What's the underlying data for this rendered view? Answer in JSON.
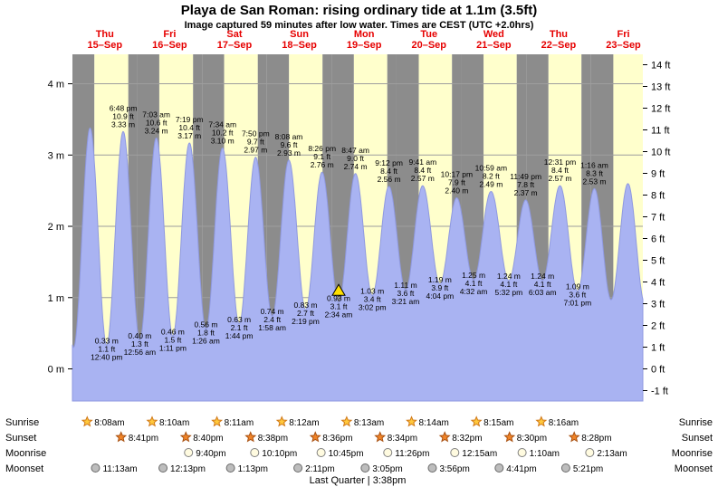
{
  "header": {
    "title": "Playa de San Roman: rising ordinary tide at 1.1m (3.5ft)",
    "subtitle": "Image captured 59 minutes after low water. Times are CEST (UTC +2.0hrs)"
  },
  "chart_data": {
    "type": "area",
    "title": "Playa de San Roman: rising ordinary tide at 1.1m (3.5ft)",
    "x_range_days": [
      0,
      8.8
    ],
    "grid": true,
    "day_band_color": "#ffffcc",
    "night_band_color": "#8c8c8c",
    "tide_fill_color": "#a9b3f2",
    "tide_edge_color": "#8f99e0",
    "day_label_color": "#e60000",
    "current_marker_color": "#ffdf00",
    "y_left_ticks": [
      {
        "value": 4,
        "label": "4 m"
      },
      {
        "value": 3,
        "label": "3 m"
      },
      {
        "value": 2,
        "label": "2 m"
      },
      {
        "value": 1,
        "label": "1 m"
      },
      {
        "value": 0,
        "label": "0 m"
      }
    ],
    "y_right_ticks": [
      {
        "value": 14,
        "label": "14 ft"
      },
      {
        "value": 13,
        "label": "13 ft"
      },
      {
        "value": 12,
        "label": "12 ft"
      },
      {
        "value": 11,
        "label": "11 ft"
      },
      {
        "value": 10,
        "label": "10 ft"
      },
      {
        "value": 9,
        "label": "9 ft"
      },
      {
        "value": 8,
        "label": "8 ft"
      },
      {
        "value": 7,
        "label": "7 ft"
      },
      {
        "value": 6,
        "label": "6 ft"
      },
      {
        "value": 5,
        "label": "5 ft"
      },
      {
        "value": 4,
        "label": "4 ft"
      },
      {
        "value": 3,
        "label": "3 ft"
      },
      {
        "value": 2,
        "label": "2 ft"
      },
      {
        "value": 1,
        "label": "1 ft"
      },
      {
        "value": 0,
        "label": "0 ft"
      },
      {
        "value": -1,
        "label": "-1 ft"
      }
    ],
    "days": [
      {
        "weekday": "Thu",
        "date": "15–Sep"
      },
      {
        "weekday": "Fri",
        "date": "16–Sep"
      },
      {
        "weekday": "Sat",
        "date": "17–Sep"
      },
      {
        "weekday": "Sun",
        "date": "18–Sep"
      },
      {
        "weekday": "Mon",
        "date": "19–Sep"
      },
      {
        "weekday": "Tue",
        "date": "20–Sep"
      },
      {
        "weekday": "Wed",
        "date": "21–Sep"
      },
      {
        "weekday": "Thu",
        "date": "22–Sep"
      },
      {
        "weekday": "Fri",
        "date": "23–Sep"
      }
    ],
    "tide_events": [
      {
        "t": -0.235,
        "m": 3.4,
        "type": "high",
        "labeled": false
      },
      {
        "t": 0.018,
        "m": 0.3,
        "type": "low",
        "labeled": false
      },
      {
        "t": 0.272,
        "m": 3.38,
        "type": "high",
        "labeled": false
      },
      {
        "t": 0.528,
        "m": 0.33,
        "type": "low",
        "labeled": true,
        "labels": {
          "m": "0.33 m",
          "ft": "1.1 ft",
          "time": "12:40 pm"
        }
      },
      {
        "t": 0.783,
        "m": 3.33,
        "type": "high",
        "labeled": true,
        "labels": {
          "m": "3.33 m",
          "ft": "10.9 ft",
          "time": "6:48 pm"
        }
      },
      {
        "t": 1.039,
        "m": 0.4,
        "type": "low",
        "labeled": true,
        "labels": {
          "m": "0.40 m",
          "ft": "1.3 ft",
          "time": "12:56 am"
        }
      },
      {
        "t": 1.294,
        "m": 3.24,
        "type": "high",
        "labeled": true,
        "labels": {
          "m": "3.24 m",
          "ft": "10.6 ft",
          "time": "7:03 am"
        }
      },
      {
        "t": 1.549,
        "m": 0.46,
        "type": "low",
        "labeled": true,
        "labels": {
          "m": "0.46 m",
          "ft": "1.5 ft",
          "time": "1:11 pm"
        }
      },
      {
        "t": 1.805,
        "m": 3.17,
        "type": "high",
        "labeled": true,
        "labels": {
          "m": "3.17 m",
          "ft": "10.4 ft",
          "time": "7:19 pm"
        }
      },
      {
        "t": 2.06,
        "m": 0.56,
        "type": "low",
        "labeled": true,
        "labels": {
          "m": "0.56 m",
          "ft": "1.8 ft",
          "time": "1:26 am"
        }
      },
      {
        "t": 2.315,
        "m": 3.1,
        "type": "high",
        "labeled": true,
        "labels": {
          "m": "3.10 m",
          "ft": "10.2 ft",
          "time": "7:34 am"
        }
      },
      {
        "t": 2.572,
        "m": 0.63,
        "type": "low",
        "labeled": true,
        "labels": {
          "m": "0.63 m",
          "ft": "2.1 ft",
          "time": "1:44 pm"
        }
      },
      {
        "t": 2.826,
        "m": 2.97,
        "type": "high",
        "labeled": true,
        "labels": {
          "m": "2.97 m",
          "ft": "9.7 ft",
          "time": "7:50 pm"
        }
      },
      {
        "t": 3.082,
        "m": 0.74,
        "type": "low",
        "labeled": true,
        "labels": {
          "m": "0.74 m",
          "ft": "2.4 ft",
          "time": "1:58 am"
        }
      },
      {
        "t": 3.339,
        "m": 2.93,
        "type": "high",
        "labeled": true,
        "labels": {
          "m": "2.93 m",
          "ft": "9.6 ft",
          "time": "8:08 am"
        }
      },
      {
        "t": 3.597,
        "m": 0.83,
        "type": "low",
        "labeled": true,
        "labels": {
          "m": "0.83 m",
          "ft": "2.7 ft",
          "time": "2:19 pm"
        }
      },
      {
        "t": 3.851,
        "m": 2.76,
        "type": "high",
        "labeled": true,
        "labels": {
          "m": "2.76 m",
          "ft": "9.1 ft",
          "time": "8:26 pm"
        }
      },
      {
        "t": 4.107,
        "m": 0.93,
        "type": "low",
        "labeled": true,
        "current": true,
        "labels": {
          "m": "0.93 m",
          "ft": "3.1 ft",
          "time": "2:34 am"
        }
      },
      {
        "t": 4.366,
        "m": 2.74,
        "type": "high",
        "labeled": true,
        "labels": {
          "m": "2.74 m",
          "ft": "9.0 ft",
          "time": "8:47 am"
        }
      },
      {
        "t": 4.626,
        "m": 1.03,
        "type": "low",
        "labeled": true,
        "labels": {
          "m": "1.03 m",
          "ft": "3.4 ft",
          "time": "3:02 pm"
        }
      },
      {
        "t": 4.883,
        "m": 2.56,
        "type": "high",
        "labeled": true,
        "labels": {
          "m": "2.56 m",
          "ft": "8.4 ft",
          "time": "9:12 pm"
        }
      },
      {
        "t": 5.14,
        "m": 1.11,
        "type": "low",
        "labeled": true,
        "labels": {
          "m": "1.11 m",
          "ft": "3.6 ft",
          "time": "3:21 am"
        }
      },
      {
        "t": 5.403,
        "m": 2.57,
        "type": "high",
        "labeled": true,
        "labels": {
          "m": "2.57 m",
          "ft": "8.4 ft",
          "time": "9:41 am"
        }
      },
      {
        "t": 5.669,
        "m": 1.19,
        "type": "low",
        "labeled": true,
        "labels": {
          "m": "1.19 m",
          "ft": "3.9 ft",
          "time": "4:04 pm"
        }
      },
      {
        "t": 5.928,
        "m": 2.4,
        "type": "high",
        "labeled": true,
        "labels": {
          "m": "2.40 m",
          "ft": "7.9 ft",
          "time": "10:17 pm"
        }
      },
      {
        "t": 6.189,
        "m": 1.25,
        "type": "low",
        "labeled": true,
        "labels": {
          "m": "1.25 m",
          "ft": "4.1 ft",
          "time": "4:32 am"
        }
      },
      {
        "t": 6.458,
        "m": 2.49,
        "type": "high",
        "labeled": true,
        "labels": {
          "m": "2.49 m",
          "ft": "8.2 ft",
          "time": "10:59 am"
        }
      },
      {
        "t": 6.731,
        "m": 1.24,
        "type": "low",
        "labeled": true,
        "labels": {
          "m": "1.24 m",
          "ft": "4.1 ft",
          "time": "5:32 pm"
        }
      },
      {
        "t": 6.993,
        "m": 2.37,
        "type": "high",
        "labeled": true,
        "labels": {
          "m": "2.37 m",
          "ft": "7.8 ft",
          "time": "11:49 pm"
        }
      },
      {
        "t": 7.252,
        "m": 1.24,
        "type": "low",
        "labeled": true,
        "labels": {
          "m": "1.24 m",
          "ft": "4.1 ft",
          "time": "6:03 am"
        }
      },
      {
        "t": 7.522,
        "m": 2.57,
        "type": "high",
        "labeled": true,
        "labels": {
          "m": "2.57 m",
          "ft": "8.4 ft",
          "time": "12:31 pm"
        }
      },
      {
        "t": 7.792,
        "m": 1.09,
        "type": "low",
        "labeled": true,
        "labels": {
          "m": "1.09 m",
          "ft": "3.6 ft",
          "time": "7:01 pm"
        }
      },
      {
        "t": 8.053,
        "m": 2.53,
        "type": "high",
        "labeled": true,
        "labels": {
          "m": "2.53 m",
          "ft": "8.3 ft",
          "time": "1:16 am"
        }
      },
      {
        "t": 8.31,
        "m": 0.97,
        "type": "low",
        "labeled": false
      },
      {
        "t": 8.57,
        "m": 2.6,
        "type": "high",
        "labeled": false
      },
      {
        "t": 8.83,
        "m": 0.92,
        "type": "low",
        "labeled": false
      }
    ]
  },
  "astro": {
    "rows": [
      {
        "key": "sunrise",
        "label": "Sunrise",
        "entries": [
          {
            "day": 0,
            "time": "8:08am"
          },
          {
            "day": 1,
            "time": "8:10am"
          },
          {
            "day": 2,
            "time": "8:11am"
          },
          {
            "day": 3,
            "time": "8:12am"
          },
          {
            "day": 4,
            "time": "8:13am"
          },
          {
            "day": 5,
            "time": "8:14am"
          },
          {
            "day": 6,
            "time": "8:15am"
          },
          {
            "day": 7,
            "time": "8:16am"
          }
        ]
      },
      {
        "key": "sunset",
        "label": "Sunset",
        "entries": [
          {
            "day": 0,
            "time": "8:41pm"
          },
          {
            "day": 1,
            "time": "8:40pm"
          },
          {
            "day": 2,
            "time": "8:38pm"
          },
          {
            "day": 3,
            "time": "8:36pm"
          },
          {
            "day": 4,
            "time": "8:34pm"
          },
          {
            "day": 5,
            "time": "8:32pm"
          },
          {
            "day": 6,
            "time": "8:30pm"
          },
          {
            "day": 7,
            "time": "8:28pm"
          }
        ]
      },
      {
        "key": "moonrise",
        "label": "Moonrise",
        "entries": [
          {
            "day": 1,
            "time": "9:40pm"
          },
          {
            "day": 2,
            "time": "10:10pm"
          },
          {
            "day": 3,
            "time": "10:45pm"
          },
          {
            "day": 4,
            "time": "11:26pm"
          },
          {
            "day": 6,
            "time": "12:15am"
          },
          {
            "day": 7,
            "time": "1:10am"
          },
          {
            "day": 8,
            "time": "2:13am"
          }
        ]
      },
      {
        "key": "moonset",
        "label": "Moonset",
        "entries": [
          {
            "day": 0,
            "time": "11:13am"
          },
          {
            "day": 1,
            "time": "12:13pm"
          },
          {
            "day": 2,
            "time": "1:13pm"
          },
          {
            "day": 3,
            "time": "2:11pm"
          },
          {
            "day": 4,
            "time": "3:05pm"
          },
          {
            "day": 5,
            "time": "3:56pm"
          },
          {
            "day": 6,
            "time": "4:41pm"
          },
          {
            "day": 7,
            "time": "5:21pm"
          }
        ]
      }
    ],
    "phase": "Last Quarter | 3:38pm"
  }
}
